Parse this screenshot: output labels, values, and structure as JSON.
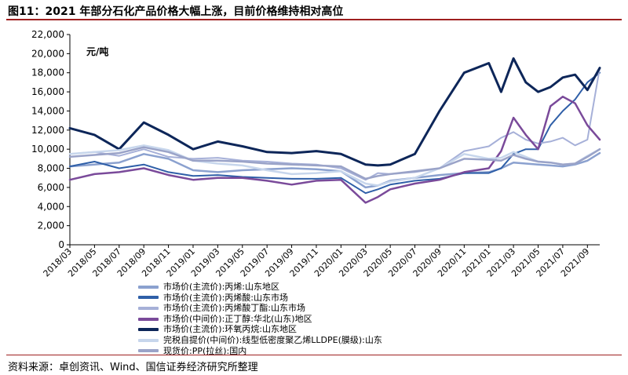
{
  "figure": {
    "title": "图11：2021 年部分石化产品价格大幅上涨，目前价格维持相对高位",
    "source": "资料来源：卓创资讯、Wind、国信证券经济研究所整理"
  },
  "chart_data": {
    "type": "line",
    "ylabel": "元/吨",
    "ylim": [
      0,
      22000
    ],
    "yticks": [
      0,
      2000,
      4000,
      6000,
      8000,
      10000,
      12000,
      14000,
      16000,
      18000,
      20000,
      22000
    ],
    "ytick_labels": [
      "0",
      "2,000",
      "4,000",
      "6,000",
      "8,000",
      "10,000",
      "12,000",
      "14,000",
      "16,000",
      "18,000",
      "20,000",
      "22,000"
    ],
    "x_tick_labels": [
      "2018/03",
      "2018/05",
      "2018/07",
      "2018/09",
      "2018/11",
      "2019/01",
      "2019/03",
      "2019/05",
      "2019/07",
      "2019/09",
      "2019/11",
      "2020/01",
      "2020/03",
      "2020/05",
      "2020/07",
      "2020/09",
      "2020/11",
      "2021/01",
      "2021/03",
      "2021/05",
      "2021/07",
      "2021/09"
    ],
    "x_points": [
      "2018/03",
      "2018/05",
      "2018/07",
      "2018/09",
      "2018/11",
      "2019/01",
      "2019/03",
      "2019/05",
      "2019/07",
      "2019/09",
      "2019/11",
      "2020/01",
      "2020/03",
      "2020/04",
      "2020/05",
      "2020/07",
      "2020/09",
      "2020/11",
      "2021/01",
      "2021/02",
      "2021/03",
      "2021/04",
      "2021/05",
      "2021/06",
      "2021/07",
      "2021/08",
      "2021/09",
      "2021/10"
    ],
    "series": [
      {
        "name": "市场价(主流价):丙烯:山东地区",
        "color": "#8ba1cf",
        "width": 2.5,
        "values": [
          8200,
          8400,
          8600,
          9500,
          9000,
          7800,
          7600,
          7800,
          7900,
          8000,
          7900,
          7700,
          6000,
          6200,
          6700,
          7000,
          7300,
          7500,
          7600,
          8000,
          8600,
          8500,
          8400,
          8300,
          8200,
          8400,
          8800,
          9600
        ]
      },
      {
        "name": "市场价(主流价):丙烯酸:山东市场",
        "color": "#2f5fa8",
        "width": 2,
        "values": [
          8200,
          8700,
          8000,
          8400,
          7600,
          7200,
          7300,
          7100,
          7000,
          6900,
          6900,
          7000,
          5400,
          5800,
          6300,
          6700,
          6900,
          7500,
          7500,
          8000,
          9500,
          10000,
          10000,
          12500,
          14000,
          15200,
          17000,
          18000
        ]
      },
      {
        "name": "市场价(主流价):丙烯酸丁酯:山东市场",
        "color": "#a6b0d8",
        "width": 2,
        "values": [
          9500,
          9700,
          9300,
          10000,
          9200,
          9000,
          9100,
          8800,
          8700,
          8500,
          8400,
          8000,
          6800,
          7500,
          7400,
          7600,
          8000,
          9800,
          10300,
          11200,
          11800,
          11000,
          10600,
          10800,
          11200,
          10400,
          11000,
          18500
        ]
      },
      {
        "name": "市场价(中间价):正丁醇:华北(山东)地区",
        "color": "#7a4a9a",
        "width": 2.5,
        "values": [
          6800,
          7400,
          7600,
          8000,
          7300,
          6800,
          7000,
          7000,
          6700,
          6300,
          6700,
          6800,
          4400,
          5000,
          5800,
          6400,
          6800,
          7600,
          8000,
          9800,
          13300,
          11500,
          10000,
          14500,
          15500,
          14800,
          12500,
          11000
        ]
      },
      {
        "name": "市场价(主流价):环氧丙烷:山东地区",
        "color": "#0d2659",
        "width": 3,
        "values": [
          12200,
          11500,
          10000,
          12800,
          11500,
          10000,
          10800,
          10300,
          9700,
          9600,
          9800,
          9500,
          8400,
          8300,
          8400,
          9500,
          14000,
          18000,
          19000,
          16000,
          19500,
          17000,
          16000,
          16500,
          17500,
          17800,
          16200,
          18500
        ]
      },
      {
        "name": "完税自提价(中间价):线型低密度聚乙烯LLDPE(膜级):山东",
        "color": "#c7d6ec",
        "width": 2.5,
        "values": [
          9500,
          9700,
          9900,
          10400,
          9900,
          8800,
          8500,
          8300,
          7800,
          7400,
          7500,
          7700,
          6400,
          6200,
          6600,
          7000,
          8000,
          9500,
          9000,
          9100,
          9700,
          9200,
          8700,
          8600,
          8400,
          8500,
          9300,
          10000
        ]
      },
      {
        "name": "现货价:PP(拉丝):国内",
        "color": "#9aa3c8",
        "width": 2.5,
        "values": [
          9200,
          9400,
          9600,
          10200,
          9700,
          8800,
          8800,
          8700,
          8500,
          8400,
          8300,
          8200,
          6900,
          7200,
          7400,
          7700,
          8000,
          9000,
          8900,
          8800,
          9400,
          9000,
          8700,
          8600,
          8400,
          8500,
          9200,
          10000
        ]
      }
    ]
  }
}
